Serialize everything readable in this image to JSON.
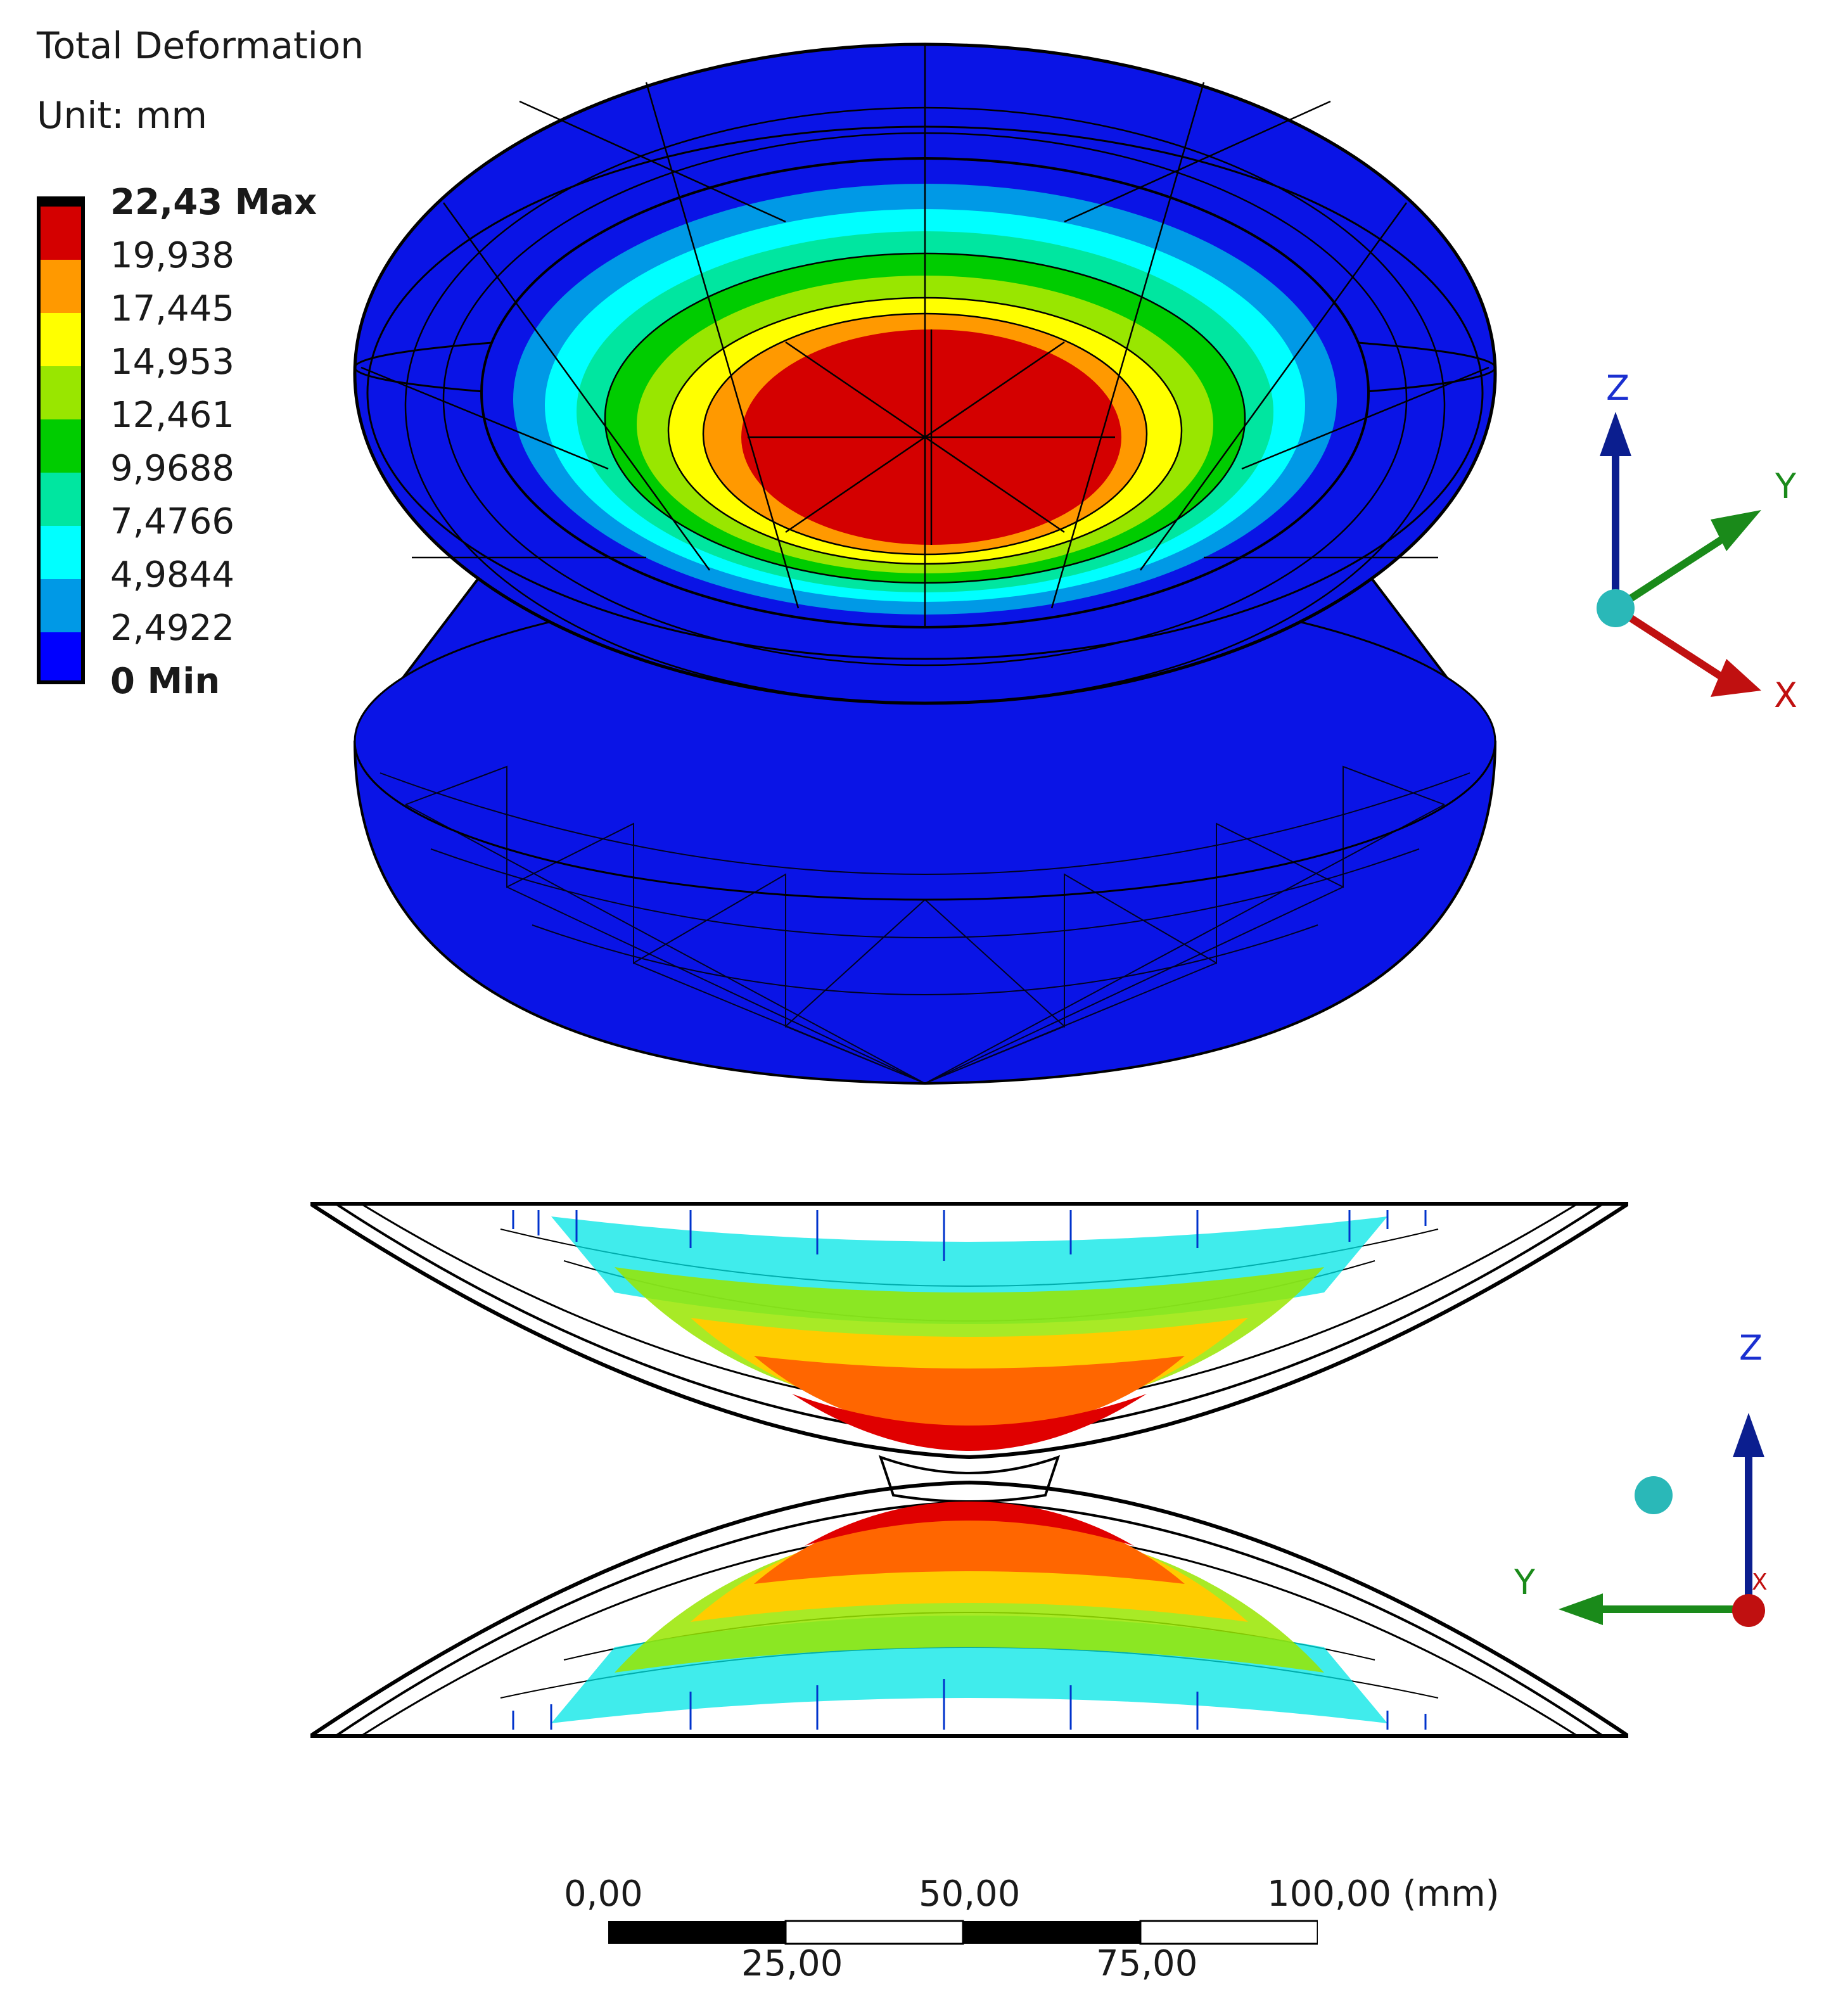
{
  "result": {
    "title": "Total Deformation",
    "unit": "Unit: mm"
  },
  "legend": {
    "levels": [
      {
        "label": "22,43 Max",
        "bold": true
      },
      {
        "label": "19,938",
        "bold": false
      },
      {
        "label": "17,445",
        "bold": false
      },
      {
        "label": "14,953",
        "bold": false
      },
      {
        "label": "12,461",
        "bold": false
      },
      {
        "label": "9,9688",
        "bold": false
      },
      {
        "label": "7,4766",
        "bold": false
      },
      {
        "label": "4,9844",
        "bold": false
      },
      {
        "label": "2,4922",
        "bold": false
      },
      {
        "label": "0 Min",
        "bold": true
      }
    ],
    "colors": [
      "#d40000",
      "#ff9900",
      "#ffff00",
      "#99e600",
      "#00cc00",
      "#00e6a0",
      "#00ffff",
      "#0099e6",
      "#0000ff"
    ]
  },
  "triad_top": {
    "z": "Z",
    "y": "Y",
    "x": "X"
  },
  "triad_bottom": {
    "z": "Z",
    "y": "Y",
    "x": "X"
  },
  "scale": {
    "top_labels": [
      "0,00",
      "50,00",
      "100,00 (mm)"
    ],
    "bottom_labels": [
      "25,00",
      "75,00"
    ]
  },
  "colors": {
    "mesh_blue": "#0a14e6",
    "edge": "#000000",
    "axis_z": "#0b1e8f",
    "axis_y": "#1a8a1a",
    "axis_x": "#c01010",
    "origin": "#2ab8b8"
  }
}
